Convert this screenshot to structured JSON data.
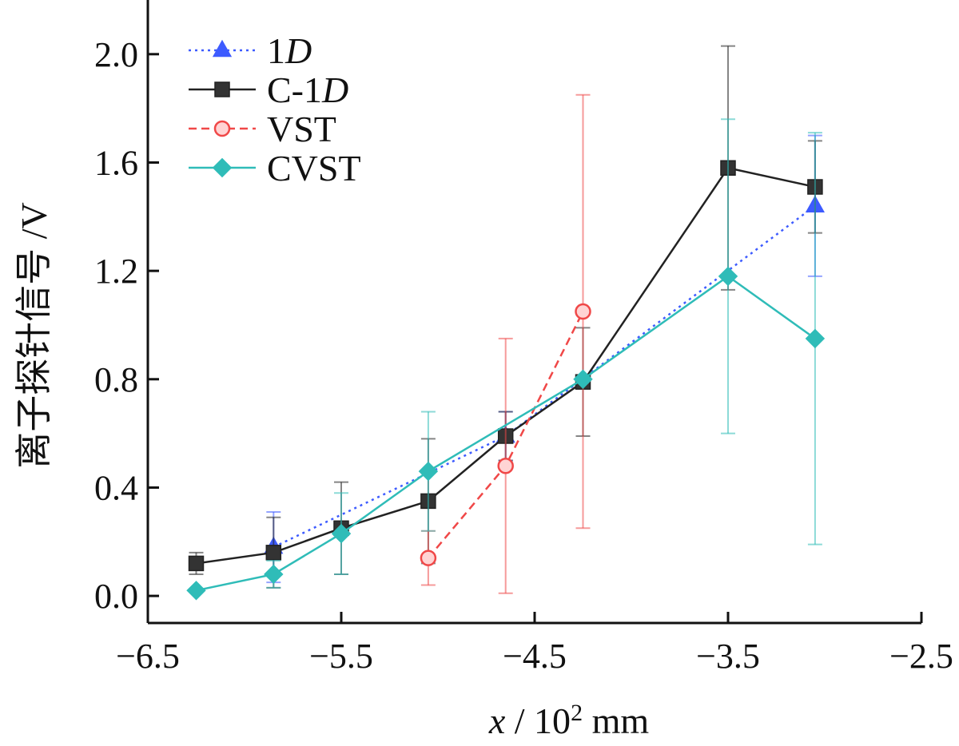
{
  "chart_data": {
    "type": "line",
    "xlabel": "x / 10² mm",
    "xlabel_parts": {
      "var": "x",
      "sep": "/",
      "base": "10",
      "exp": "2",
      "unit": "mm"
    },
    "ylabel": "离子探针信号 /V",
    "xlim": [
      -6.5,
      -2.5
    ],
    "ylim": [
      -0.1,
      2.2
    ],
    "xticks": [
      -6.5,
      -5.5,
      -4.5,
      -3.5,
      -2.5
    ],
    "xtick_labels": [
      "−6.5",
      "−5.5",
      "−4.5",
      "−3.5",
      "−2.5"
    ],
    "yticks": [
      0.0,
      0.4,
      0.8,
      1.2,
      1.6,
      2.0
    ],
    "ytick_labels": [
      "0.0",
      "0.4",
      "0.8",
      "1.2",
      "1.6",
      "2.0"
    ],
    "legend_position": "top-left",
    "series": [
      {
        "name": "1D",
        "label_prefix": "1",
        "label_italic": "D",
        "color": "#3d5bff",
        "line": "dotted",
        "marker": "triangle",
        "x": [
          -5.85,
          -4.65,
          -3.05
        ],
        "y": [
          0.18,
          0.59,
          1.44
        ],
        "err": [
          0.13,
          0.09,
          0.26
        ]
      },
      {
        "name": "C-1D",
        "label_prefix": "C-1",
        "label_italic": "D",
        "color": "#222222",
        "line": "solid",
        "marker": "square",
        "x": [
          -6.25,
          -5.85,
          -5.5,
          -5.05,
          -4.65,
          -4.25,
          -3.5,
          -3.05
        ],
        "y": [
          0.12,
          0.16,
          0.25,
          0.35,
          0.59,
          0.79,
          1.58,
          1.51
        ],
        "err": [
          0.04,
          0.13,
          0.17,
          0.23,
          0.09,
          0.2,
          0.45,
          0.17
        ]
      },
      {
        "name": "VST",
        "label_prefix": "VST",
        "label_italic": "",
        "color": "#f04848",
        "line": "dashed",
        "marker": "circle",
        "x": [
          -5.05,
          -4.65,
          -4.25
        ],
        "y": [
          0.14,
          0.48,
          1.05
        ],
        "err": [
          0.1,
          0.47,
          0.8
        ]
      },
      {
        "name": "CVST",
        "label_prefix": "CVST",
        "label_italic": "",
        "color": "#2fbcb8",
        "line": "solid",
        "marker": "diamond",
        "x": [
          -6.25,
          -5.85,
          -5.5,
          -5.05,
          -4.25,
          -3.5,
          -3.05
        ],
        "y": [
          0.02,
          0.08,
          0.23,
          0.46,
          0.8,
          1.18,
          0.95
        ],
        "err": [
          0.0,
          0.05,
          0.15,
          0.22,
          0.0,
          0.58,
          0.76
        ]
      }
    ]
  }
}
